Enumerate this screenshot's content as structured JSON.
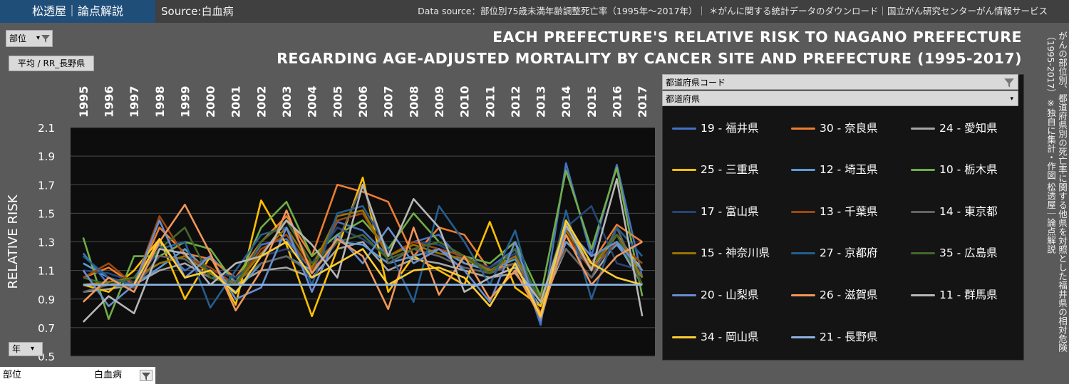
{
  "header": {
    "brand": "松透屋｜論点解説",
    "source": "Source:白血病",
    "data_source": "Data source：部位別75歳未満年齢調整死亡率（1995年～2017年）｜ ＊がんに関する統計データのダウンロード｜国立がん研究センターがん情報サービス"
  },
  "controls": {
    "site_filter": "部位",
    "rr_button": "平均 / RR_長野県",
    "year_filter": "年",
    "legend_field1": "都道府県コード",
    "legend_field2": "都道府県",
    "bottom_label": "部位",
    "bottom_value": "白血病"
  },
  "side_note": "がんの部位別、都道府県別の死亡率に関する他県を対照とした福井県の相対危険（1995-2017）※独自に集計・作図 松透屋｜論点解説",
  "chart_data": {
    "type": "line",
    "title": "EACH PREFECTURE'S RELATIVE RISK TO NAGANO PREFECTURE",
    "subtitle": "REGARDING AGE-ADJUSTED MORTALITY BY CANCER SITE AND PREFECTURE (1995-2017)",
    "ylabel": "RELATIVE RISK",
    "xlabel": "",
    "ylim": [
      0.5,
      2.1
    ],
    "yticks": [
      "2.1",
      "1.9",
      "1.7",
      "1.5",
      "1.3",
      "1.1",
      "0.9",
      "0.7",
      "0.5"
    ],
    "x": [
      "1995",
      "1996",
      "1997",
      "1998",
      "1999",
      "2000",
      "2001",
      "2002",
      "2003",
      "2004",
      "2005",
      "2006",
      "2007",
      "2008",
      "2009",
      "2010",
      "2011",
      "2012",
      "2013",
      "2014",
      "2015",
      "2016",
      "2017"
    ],
    "legend_position": "right",
    "series": [
      {
        "name": "19 - 福井県",
        "color": "#4472c4",
        "values": [
          1.22,
          1.0,
          1.05,
          1.28,
          1.1,
          1.2,
          1.02,
          1.28,
          1.32,
          1.1,
          1.44,
          1.38,
          1.2,
          1.3,
          1.35,
          1.15,
          1.12,
          1.25,
          0.72,
          1.85,
          1.2,
          1.84,
          1.05
        ]
      },
      {
        "name": "30 - 奈良県",
        "color": "#ed7d31",
        "values": [
          1.05,
          1.12,
          1.0,
          1.4,
          1.22,
          1.18,
          1.05,
          1.3,
          1.48,
          1.2,
          1.7,
          1.65,
          1.58,
          1.2,
          1.4,
          1.35,
          1.1,
          1.15,
          0.8,
          1.3,
          1.15,
          1.42,
          1.3
        ]
      },
      {
        "name": "24 - 愛知県",
        "color": "#a5a5a5",
        "values": [
          0.95,
          0.97,
          1.0,
          1.1,
          1.15,
          1.05,
          1.0,
          1.1,
          1.12,
          1.05,
          1.25,
          1.3,
          1.1,
          1.18,
          1.15,
          1.1,
          1.05,
          1.08,
          0.85,
          1.25,
          1.05,
          1.3,
          1.0
        ]
      },
      {
        "name": "25 - 三重県",
        "color": "#ffc000",
        "values": [
          1.0,
          0.95,
          1.1,
          1.32,
          0.9,
          1.2,
          0.86,
          1.59,
          1.28,
          0.78,
          1.25,
          1.75,
          0.95,
          1.2,
          1.1,
          1.0,
          1.44,
          0.98,
          0.85,
          1.45,
          1.1,
          1.35,
          1.1
        ]
      },
      {
        "name": "12 - 埼玉県",
        "color": "#5b9bd5",
        "values": [
          1.15,
          1.05,
          1.0,
          1.12,
          1.25,
          1.08,
          0.95,
          1.15,
          1.2,
          1.1,
          1.3,
          1.28,
          1.15,
          1.2,
          1.25,
          1.15,
          1.1,
          1.18,
          0.88,
          1.3,
          1.12,
          1.28,
          1.05
        ]
      },
      {
        "name": "10 - 栃木県",
        "color": "#70ad47",
        "values": [
          1.33,
          0.76,
          1.2,
          1.2,
          1.3,
          1.25,
          1.0,
          1.4,
          1.58,
          1.2,
          1.35,
          1.45,
          1.25,
          1.5,
          1.3,
          1.2,
          1.15,
          1.3,
          0.92,
          1.8,
          1.25,
          1.82,
          0.92
        ]
      },
      {
        "name": "17 - 富山県",
        "color": "#264478",
        "values": [
          1.1,
          1.08,
          1.02,
          1.15,
          1.2,
          1.1,
          1.05,
          1.2,
          1.25,
          1.15,
          1.4,
          1.32,
          1.2,
          1.3,
          1.28,
          1.18,
          1.12,
          1.22,
          0.9,
          1.4,
          1.55,
          1.15,
          1.1
        ]
      },
      {
        "name": "13 - 千葉県",
        "color": "#9e480e",
        "values": [
          1.05,
          1.15,
          1.0,
          1.48,
          1.2,
          1.12,
          1.0,
          1.25,
          1.35,
          1.1,
          1.45,
          1.5,
          1.2,
          1.3,
          1.25,
          1.2,
          1.1,
          1.2,
          0.88,
          1.35,
          1.1,
          1.3,
          1.15
        ]
      },
      {
        "name": "14 - 東京都",
        "color": "#636363",
        "values": [
          0.95,
          1.0,
          0.98,
          1.2,
          1.18,
          1.05,
          1.02,
          1.15,
          1.2,
          1.08,
          1.3,
          1.7,
          1.15,
          1.25,
          1.2,
          1.12,
          1.08,
          1.15,
          0.9,
          1.25,
          1.05,
          1.4,
          1.0
        ]
      },
      {
        "name": "15 - 神奈川県",
        "color": "#997300",
        "values": [
          1.0,
          1.02,
          1.05,
          1.15,
          1.2,
          1.08,
          1.0,
          1.22,
          1.4,
          1.12,
          1.48,
          1.52,
          1.2,
          1.28,
          1.22,
          1.18,
          1.1,
          1.2,
          0.9,
          1.38,
          1.12,
          1.35,
          1.05
        ]
      },
      {
        "name": "27 - 京都府",
        "color": "#255e91",
        "values": [
          1.2,
          1.05,
          1.0,
          1.25,
          1.3,
          0.84,
          1.1,
          1.35,
          1.4,
          1.0,
          1.5,
          1.55,
          1.25,
          0.88,
          1.55,
          1.3,
          1.0,
          1.38,
          0.75,
          1.52,
          0.9,
          1.4,
          1.2
        ]
      },
      {
        "name": "35 - 広島県",
        "color": "#43682b",
        "values": [
          1.05,
          1.0,
          1.05,
          1.25,
          1.4,
          1.05,
          1.0,
          1.3,
          1.45,
          1.15,
          1.3,
          1.35,
          1.18,
          1.25,
          1.3,
          1.2,
          1.08,
          1.25,
          0.88,
          1.45,
          1.15,
          1.35,
          1.0
        ]
      },
      {
        "name": "20 - 山梨県",
        "color": "#698ed0",
        "values": [
          1.1,
          0.85,
          1.0,
          1.45,
          1.05,
          1.2,
          0.9,
          0.98,
          1.4,
          0.95,
          1.35,
          1.15,
          1.4,
          1.15,
          1.25,
          1.1,
          0.88,
          1.3,
          0.75,
          1.4,
          1.2,
          1.3,
          1.1
        ]
      },
      {
        "name": "26 - 滋賀県",
        "color": "#f1975a",
        "values": [
          0.88,
          1.05,
          0.95,
          1.3,
          1.56,
          1.22,
          0.82,
          1.1,
          1.52,
          1.08,
          1.32,
          1.2,
          0.83,
          1.4,
          0.93,
          1.2,
          0.9,
          1.1,
          0.77,
          1.35,
          1.0,
          1.2,
          1.3
        ]
      },
      {
        "name": "11 - 群馬県",
        "color": "#b7b7b7",
        "values": [
          0.74,
          0.92,
          0.8,
          1.25,
          1.22,
          1.0,
          1.15,
          1.2,
          1.45,
          1.28,
          1.05,
          1.7,
          1.2,
          1.6,
          1.4,
          0.95,
          1.05,
          1.12,
          0.88,
          1.42,
          1.1,
          1.74,
          0.78
        ]
      },
      {
        "name": "34 - 岡山県",
        "color": "#ffcd33",
        "values": [
          1.0,
          1.0,
          1.0,
          1.32,
          1.05,
          1.1,
          0.94,
          1.2,
          1.3,
          1.05,
          1.15,
          1.25,
          1.0,
          1.1,
          1.12,
          1.05,
          0.85,
          1.15,
          0.78,
          1.45,
          1.15,
          1.05,
          1.0
        ]
      },
      {
        "name": "21 - 長野県",
        "color": "#8db3e2",
        "values": [
          1.0,
          1.0,
          1.0,
          1.0,
          1.0,
          1.0,
          1.0,
          1.0,
          1.0,
          1.0,
          1.0,
          1.0,
          1.0,
          1.0,
          1.0,
          1.0,
          1.0,
          1.0,
          1.0,
          1.0,
          1.0,
          1.0,
          1.0
        ]
      }
    ]
  }
}
